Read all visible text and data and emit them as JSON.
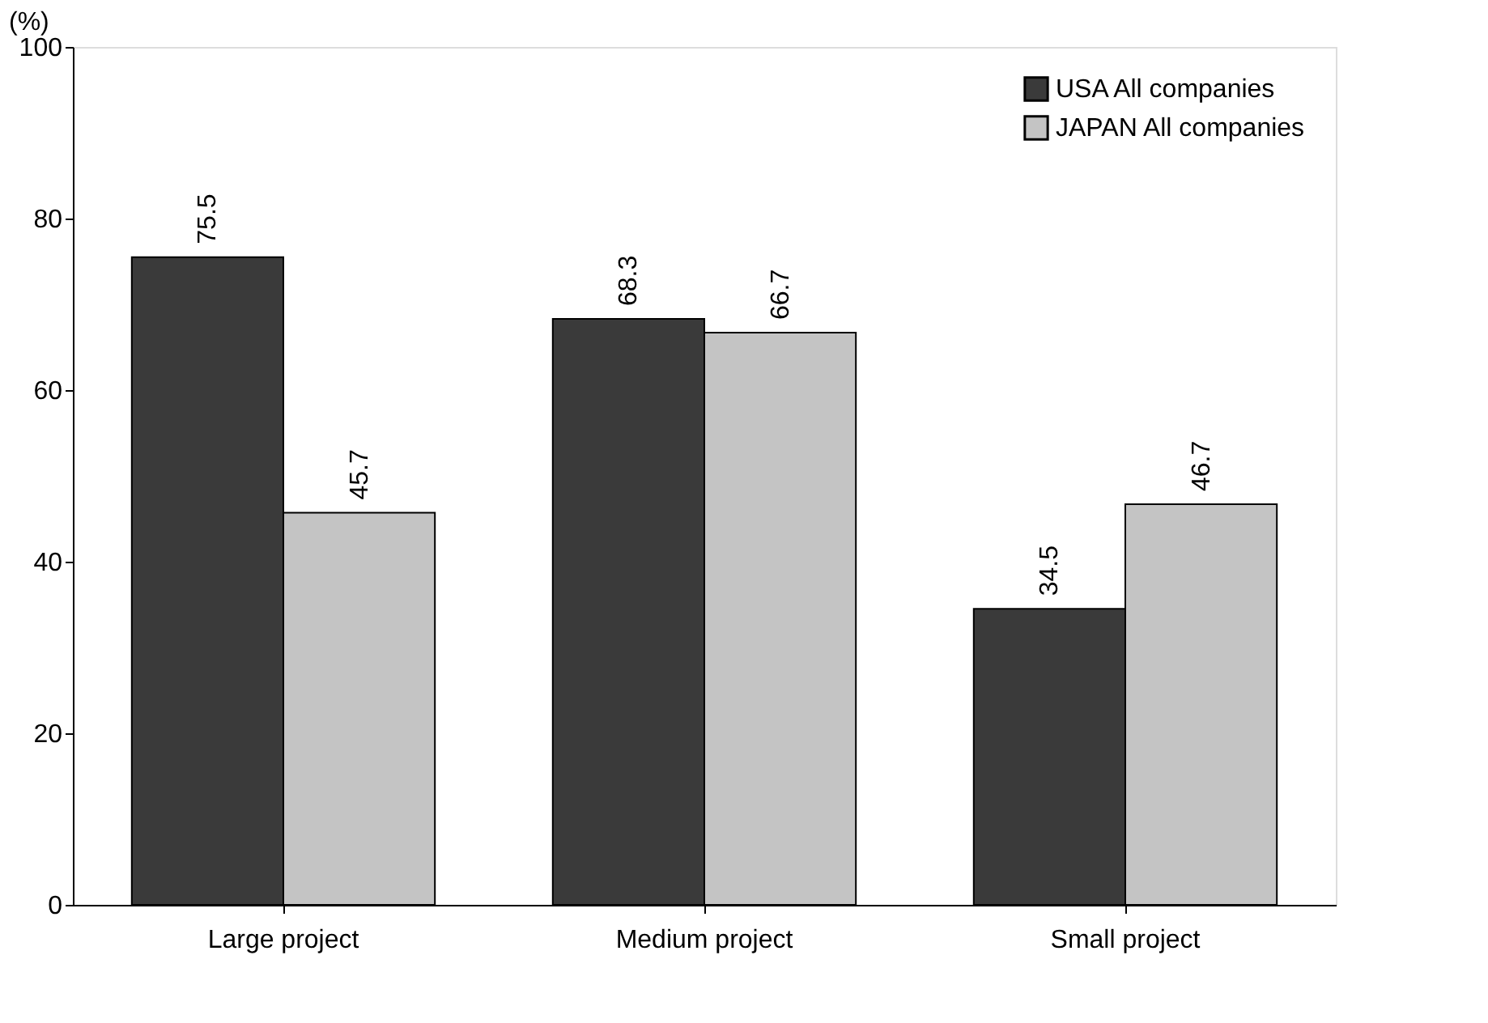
{
  "chart_data": {
    "type": "bar",
    "ylabel": "(%)",
    "categories": [
      "Large  project",
      "Medium  project",
      "Small  project"
    ],
    "series": [
      {
        "name": "USA All companies",
        "color": "#3a3a3a",
        "values": [
          75.5,
          68.3,
          34.5
        ]
      },
      {
        "name": "JAPAN All companies",
        "color": "#c4c4c4",
        "values": [
          45.7,
          66.7,
          46.7
        ]
      }
    ],
    "ylim": [
      0,
      100
    ],
    "yticks": [
      0,
      20,
      40,
      60,
      80,
      100
    ],
    "grid": false,
    "legend": "top right",
    "data_labels": true
  }
}
